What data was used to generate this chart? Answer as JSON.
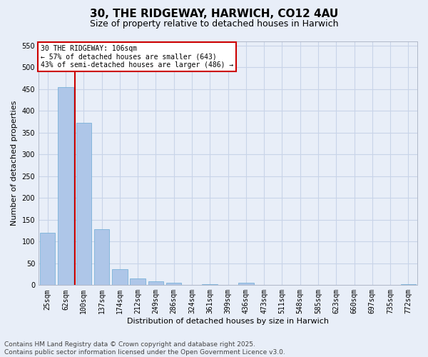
{
  "title_line1": "30, THE RIDGEWAY, HARWICH, CO12 4AU",
  "title_line2": "Size of property relative to detached houses in Harwich",
  "xlabel": "Distribution of detached houses by size in Harwich",
  "ylabel": "Number of detached properties",
  "categories": [
    "25sqm",
    "62sqm",
    "100sqm",
    "137sqm",
    "174sqm",
    "212sqm",
    "249sqm",
    "286sqm",
    "324sqm",
    "361sqm",
    "399sqm",
    "436sqm",
    "473sqm",
    "511sqm",
    "548sqm",
    "585sqm",
    "623sqm",
    "660sqm",
    "697sqm",
    "735sqm",
    "772sqm"
  ],
  "values": [
    120,
    455,
    373,
    128,
    36,
    15,
    8,
    5,
    0,
    3,
    0,
    5,
    0,
    0,
    0,
    0,
    0,
    0,
    0,
    0,
    3
  ],
  "bar_color": "#aec6e8",
  "bar_edge_color": "#6aaad4",
  "grid_color": "#c8d4e8",
  "background_color": "#e8eef8",
  "vline_x": 1.5,
  "vline_color": "#cc0000",
  "annotation_text": "30 THE RIDGEWAY: 106sqm\n← 57% of detached houses are smaller (643)\n43% of semi-detached houses are larger (486) →",
  "annotation_box_color": "#ffffff",
  "annotation_box_edge_color": "#cc0000",
  "ylim": [
    0,
    560
  ],
  "yticks": [
    0,
    50,
    100,
    150,
    200,
    250,
    300,
    350,
    400,
    450,
    500,
    550
  ],
  "footer_line1": "Contains HM Land Registry data © Crown copyright and database right 2025.",
  "footer_line2": "Contains public sector information licensed under the Open Government Licence v3.0.",
  "title_fontsize": 11,
  "subtitle_fontsize": 9,
  "axis_label_fontsize": 8,
  "tick_fontsize": 7,
  "annotation_fontsize": 7,
  "footer_fontsize": 6.5
}
